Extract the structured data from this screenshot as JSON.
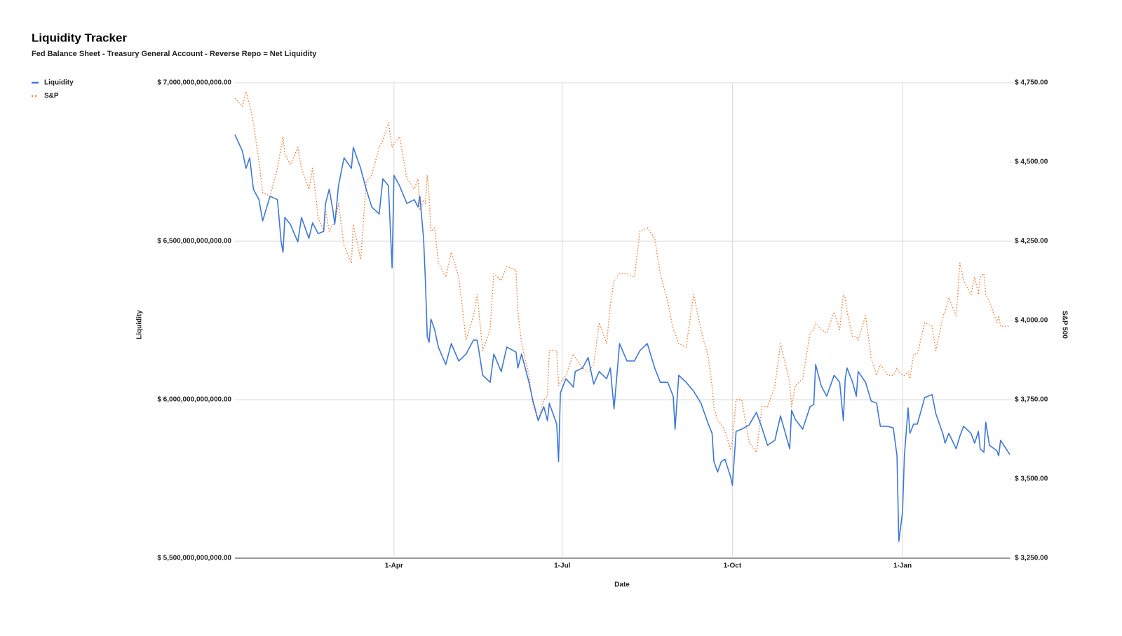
{
  "chart_data": {
    "type": "line",
    "title": "Liquidity Tracker",
    "subtitle": "Fed Balance Sheet - Treasury General Account - Reverse Repo = Net Liquidity",
    "xlabel": "Date",
    "ylabel": "Liquidity",
    "y2label": "S&P 500",
    "grid": true,
    "legend": "top-left",
    "xlim": [
      -86,
      333
    ],
    "xticks": [
      {
        "value": 0,
        "label": "1-Apr"
      },
      {
        "value": 91,
        "label": "1-Jul"
      },
      {
        "value": 183,
        "label": "1-Oct"
      },
      {
        "value": 275,
        "label": "1-Jan"
      }
    ],
    "ylim": [
      5500000000000.0,
      7000000000000.0
    ],
    "yticks": [
      {
        "value": 5500000000000.0,
        "label": "$ 5,500,000,000,000.00"
      },
      {
        "value": 6000000000000.0,
        "label": "$ 6,000,000,000,000.00"
      },
      {
        "value": 6500000000000.0,
        "label": "$ 6,500,000,000,000.00"
      },
      {
        "value": 7000000000000.0,
        "label": "$ 7,000,000,000,000.00"
      }
    ],
    "y2lim": [
      3250,
      4750
    ],
    "y2ticks": [
      {
        "value": 3250,
        "label": "$ 3,250.00"
      },
      {
        "value": 3500,
        "label": "$ 3,500.00"
      },
      {
        "value": 3750,
        "label": "$ 3,750.00"
      },
      {
        "value": 4000,
        "label": "$ 4,000.00"
      },
      {
        "value": 4250,
        "label": "$ 4,250.00"
      },
      {
        "value": 4500,
        "label": "$ 4,500.00"
      },
      {
        "value": 4750,
        "label": "$ 4,750.00"
      }
    ],
    "x": [
      -86,
      -82,
      -80,
      -78,
      -76,
      -73,
      -71,
      -67,
      -63,
      -61,
      -60,
      -59,
      -56,
      -52,
      -50,
      -46,
      -44,
      -41,
      -38,
      -37,
      -35,
      -33,
      -32,
      -30,
      -27,
      -23,
      -22,
      -18,
      -15,
      -12,
      -8,
      -6,
      -3,
      -1,
      0,
      3,
      7,
      11,
      13,
      14,
      16,
      17,
      18,
      19,
      20,
      22,
      24,
      28,
      31,
      35,
      39,
      43,
      45,
      48,
      52,
      54,
      58,
      61,
      66,
      67,
      69,
      73,
      75,
      78,
      81,
      83,
      84,
      88,
      89,
      90,
      93,
      97,
      98,
      102,
      105,
      108,
      111,
      115,
      117,
      119,
      122,
      126,
      130,
      133,
      137,
      141,
      144,
      148,
      151,
      152,
      154,
      158,
      162,
      166,
      170,
      172,
      173,
      175,
      177,
      179,
      182,
      183,
      185,
      188,
      192,
      196,
      199,
      202,
      206,
      209,
      214,
      215,
      217,
      221,
      225,
      227,
      228,
      231,
      234,
      238,
      241,
      243,
      244,
      245,
      248,
      250,
      251,
      255,
      258,
      261,
      263,
      267,
      270,
      272,
      273,
      275,
      276,
      278,
      279,
      281,
      283,
      287,
      291,
      293,
      297,
      298,
      300,
      304,
      306,
      308,
      312,
      314,
      316,
      317,
      319,
      320,
      322,
      326,
      327,
      328,
      333
    ],
    "series": [
      {
        "name": "Liquidity",
        "color": "#3c78d8",
        "axis": "y",
        "dash": false,
        "values": [
          6836000000000.0,
          6785000000000.0,
          6730000000000.0,
          6763000000000.0,
          6664000000000.0,
          6631000000000.0,
          6564000000000.0,
          6642000000000.0,
          6631000000000.0,
          6498000000000.0,
          6465000000000.0,
          6575000000000.0,
          6553000000000.0,
          6498000000000.0,
          6575000000000.0,
          6509000000000.0,
          6558000000000.0,
          6524000000000.0,
          6531000000000.0,
          6619000000000.0,
          6664000000000.0,
          6597000000000.0,
          6553000000000.0,
          6675000000000.0,
          6763000000000.0,
          6730000000000.0,
          6796000000000.0,
          6730000000000.0,
          6664000000000.0,
          6608000000000.0,
          6586000000000.0,
          6697000000000.0,
          6675000000000.0,
          6416000000000.0,
          6708000000000.0,
          6675000000000.0,
          6619000000000.0,
          6631000000000.0,
          6608000000000.0,
          6642000000000.0,
          6509000000000.0,
          6376000000000.0,
          6199000000000.0,
          6181000000000.0,
          6254000000000.0,
          6221000000000.0,
          6166000000000.0,
          6111000000000.0,
          6177000000000.0,
          6122000000000.0,
          6144000000000.0,
          6188000000000.0,
          6188000000000.0,
          6077000000000.0,
          6055000000000.0,
          6144000000000.0,
          6089000000000.0,
          6166000000000.0,
          6150000000000.0,
          6100000000000.0,
          6144000000000.0,
          6055000000000.0,
          6000000000000.0,
          5934000000000.0,
          5978000000000.0,
          5934000000000.0,
          5989000000000.0,
          5923000000000.0,
          5805000000000.0,
          6022000000000.0,
          6066000000000.0,
          6040000000000.0,
          6089000000000.0,
          6100000000000.0,
          6133000000000.0,
          6049000000000.0,
          6089000000000.0,
          6066000000000.0,
          6100000000000.0,
          5971000000000.0,
          6177000000000.0,
          6122000000000.0,
          6122000000000.0,
          6155000000000.0,
          6177000000000.0,
          6100000000000.0,
          6055000000000.0,
          6055000000000.0,
          6011000000000.0,
          5907000000000.0,
          6077000000000.0,
          6055000000000.0,
          6027000000000.0,
          5989000000000.0,
          5923000000000.0,
          5894000000000.0,
          5805000000000.0,
          5772000000000.0,
          5805000000000.0,
          5812000000000.0,
          5757000000000.0,
          5730000000000.0,
          5900000000000.0,
          5907000000000.0,
          5920000000000.0,
          5960000000000.0,
          5911000000000.0,
          5856000000000.0,
          5872000000000.0,
          5949000000000.0,
          5845000000000.0,
          5967000000000.0,
          5938000000000.0,
          5907000000000.0,
          5978000000000.0,
          5985000000000.0,
          6111000000000.0,
          6044000000000.0,
          6011000000000.0,
          6077000000000.0,
          6055000000000.0,
          5934000000000.0,
          6066000000000.0,
          6100000000000.0,
          6055000000000.0,
          6011000000000.0,
          6089000000000.0,
          6055000000000.0,
          5996000000000.0,
          5989000000000.0,
          5916000000000.0,
          5916000000000.0,
          5911000000000.0,
          5823000000000.0,
          5553000000000.0,
          5646000000000.0,
          5823000000000.0,
          5974000000000.0,
          5894000000000.0,
          5923000000000.0,
          5923000000000.0,
          6007000000000.0,
          6016000000000.0,
          5956000000000.0,
          5889000000000.0,
          5863000000000.0,
          5894000000000.0,
          5845000000000.0,
          5885000000000.0,
          5916000000000.0,
          5894000000000.0,
          5863000000000.0,
          5900000000000.0,
          5845000000000.0,
          5834000000000.0,
          5929000000000.0,
          5856000000000.0,
          5839000000000.0,
          5823000000000.0,
          5872000000000.0,
          5827000000000.0
        ]
      },
      {
        "name": "S&P",
        "color": "#f07b2b",
        "axis": "y2",
        "dash": true,
        "values": [
          4701,
          4675,
          4723,
          4679,
          4624,
          4502,
          4403,
          4392,
          4480,
          4546,
          4580,
          4525,
          4491,
          4546,
          4480,
          4414,
          4480,
          4325,
          4281,
          4347,
          4281,
          4303,
          4308,
          4369,
          4237,
          4181,
          4303,
          4192,
          4436,
          4458,
          4546,
          4569,
          4624,
          4546,
          4557,
          4580,
          4447,
          4414,
          4447,
          4347,
          4381,
          4369,
          4458,
          4392,
          4281,
          4292,
          4181,
          4137,
          4215,
          4137,
          3938,
          4015,
          4082,
          3905,
          3971,
          4148,
          4126,
          4170,
          4159,
          4027,
          3927,
          3827,
          3739,
          3684,
          3750,
          3761,
          3905,
          3905,
          3794,
          3805,
          3827,
          3894,
          3883,
          3849,
          3838,
          3861,
          3993,
          3927,
          4049,
          4126,
          4148,
          4148,
          4137,
          4281,
          4292,
          4259,
          4148,
          4060,
          3971,
          3960,
          3927,
          3916,
          4082,
          3971,
          3883,
          3794,
          3728,
          3684,
          3673,
          3650,
          3595,
          3617,
          3750,
          3750,
          3617,
          3584,
          3728,
          3728,
          3794,
          3927,
          3805,
          3728,
          3794,
          3816,
          3960,
          3971,
          3993,
          3971,
          3960,
          4027,
          3971,
          4082,
          4071,
          4027,
          3949,
          3949,
          3938,
          4015,
          3883,
          3827,
          3861,
          3827,
          3827,
          3849,
          3838,
          3827,
          3827,
          3838,
          3816,
          3894,
          3894,
          3993,
          3982,
          3905,
          4015,
          4027,
          4071,
          4015,
          4181,
          4126,
          4082,
          4137,
          4082,
          4137,
          4148,
          4082,
          4060,
          3993,
          4015,
          3982,
          3982
        ]
      }
    ]
  }
}
